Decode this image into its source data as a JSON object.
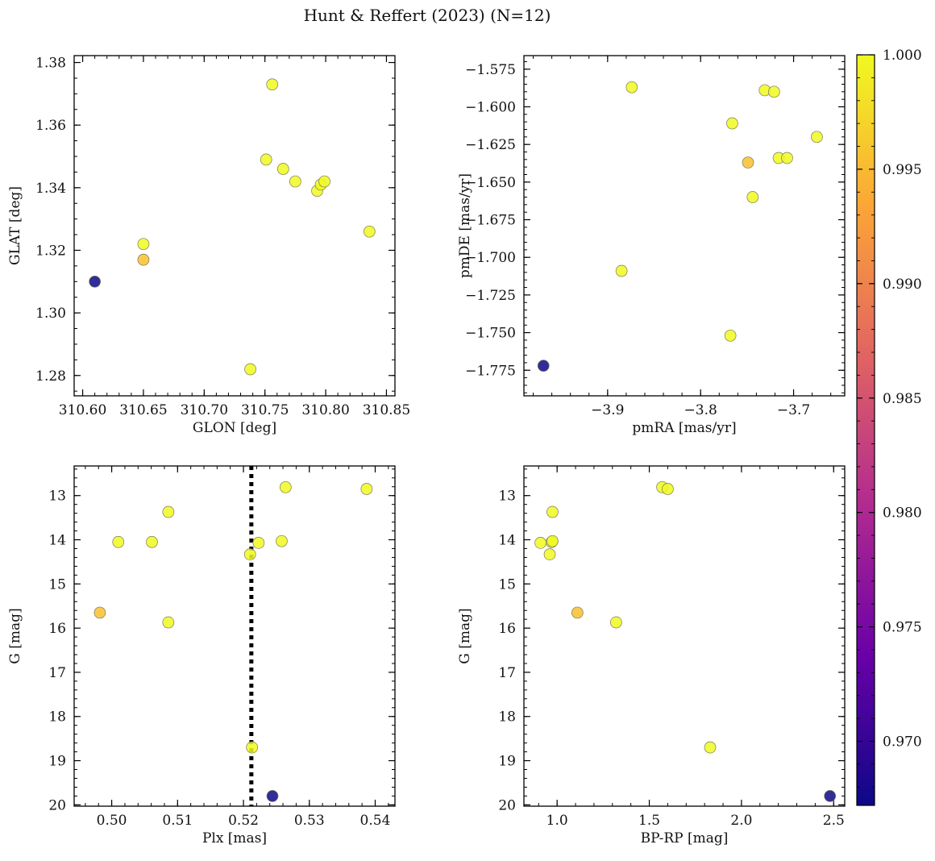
{
  "figure": {
    "title": "Hunt & Reffert (2023) (N=12)"
  },
  "colorbar": {
    "min": 0.9672,
    "max": 1.0,
    "ticks": [
      "1.000",
      "0.995",
      "0.990",
      "0.985",
      "0.980",
      "0.975",
      "0.970"
    ],
    "tick_values": [
      1.0,
      0.995,
      0.99,
      0.985,
      0.98,
      0.975,
      0.97
    ],
    "colormap": "plasma",
    "colors": [
      "#0d0887",
      "#6a00a8",
      "#b12a90",
      "#e16462",
      "#fca636",
      "#f0f921"
    ]
  },
  "chart_data": [
    {
      "type": "scatter",
      "id": "lonlat",
      "xlabel": "GLON [deg]",
      "ylabel": "GLAT [deg]",
      "xlim": [
        310.593,
        310.857
      ],
      "ylim": [
        1.2735,
        1.3822
      ],
      "y_inverted": false,
      "xticks": [
        {
          "v": 310.6,
          "label": "310.60"
        },
        {
          "v": 310.65,
          "label": "310.65"
        },
        {
          "v": 310.7,
          "label": "310.70"
        },
        {
          "v": 310.75,
          "label": "310.75"
        },
        {
          "v": 310.8,
          "label": "310.80"
        },
        {
          "v": 310.85,
          "label": "310.85"
        }
      ],
      "yticks": [
        {
          "v": 1.28,
          "label": "1.28"
        },
        {
          "v": 1.3,
          "label": "1.30"
        },
        {
          "v": 1.32,
          "label": "1.32"
        },
        {
          "v": 1.34,
          "label": "1.34"
        },
        {
          "v": 1.36,
          "label": "1.36"
        },
        {
          "v": 1.38,
          "label": "1.38"
        }
      ],
      "x_minor_step": 0.01,
      "y_minor_step": 0.005,
      "points": [
        {
          "x": 310.61,
          "y": 1.31,
          "c": 0.9672
        },
        {
          "x": 310.65,
          "y": 1.317,
          "c": 0.9955
        },
        {
          "x": 310.65,
          "y": 1.322,
          "c": 1.0
        },
        {
          "x": 310.738,
          "y": 1.282,
          "c": 1.0
        },
        {
          "x": 310.751,
          "y": 1.349,
          "c": 1.0
        },
        {
          "x": 310.756,
          "y": 1.373,
          "c": 1.0
        },
        {
          "x": 310.765,
          "y": 1.346,
          "c": 1.0
        },
        {
          "x": 310.775,
          "y": 1.342,
          "c": 1.0
        },
        {
          "x": 310.793,
          "y": 1.339,
          "c": 1.0
        },
        {
          "x": 310.796,
          "y": 1.341,
          "c": 1.0
        },
        {
          "x": 310.799,
          "y": 1.342,
          "c": 1.0
        },
        {
          "x": 310.836,
          "y": 1.326,
          "c": 1.0
        }
      ]
    },
    {
      "type": "scatter",
      "id": "pm",
      "xlabel": "pmRA [mas/yr]",
      "ylabel": "pmDE [mas/yr]",
      "xlim": [
        -3.99,
        -3.645
      ],
      "ylim": [
        -1.792,
        -1.566
      ],
      "y_inverted": false,
      "xticks": [
        {
          "v": -3.9,
          "label": "−3.9"
        },
        {
          "v": -3.8,
          "label": "−3.8"
        },
        {
          "v": -3.7,
          "label": "−3.7"
        }
      ],
      "yticks": [
        {
          "v": -1.575,
          "label": "−1.575"
        },
        {
          "v": -1.6,
          "label": "−1.600"
        },
        {
          "v": -1.625,
          "label": "−1.625"
        },
        {
          "v": -1.65,
          "label": "−1.650"
        },
        {
          "v": -1.675,
          "label": "−1.675"
        },
        {
          "v": -1.7,
          "label": "−1.700"
        },
        {
          "v": -1.725,
          "label": "−1.725"
        },
        {
          "v": -1.75,
          "label": "−1.750"
        },
        {
          "v": -1.775,
          "label": "−1.775"
        }
      ],
      "x_minor_step": 0.02,
      "y_minor_step": 0.005,
      "points": [
        {
          "x": -3.969,
          "y": -1.772,
          "c": 0.9672
        },
        {
          "x": -3.885,
          "y": -1.709,
          "c": 1.0
        },
        {
          "x": -3.874,
          "y": -1.587,
          "c": 1.0
        },
        {
          "x": -3.768,
          "y": -1.752,
          "c": 1.0
        },
        {
          "x": -3.766,
          "y": -1.611,
          "c": 1.0
        },
        {
          "x": -3.749,
          "y": -1.637,
          "c": 0.9955
        },
        {
          "x": -3.744,
          "y": -1.66,
          "c": 1.0
        },
        {
          "x": -3.731,
          "y": -1.589,
          "c": 1.0
        },
        {
          "x": -3.721,
          "y": -1.59,
          "c": 1.0
        },
        {
          "x": -3.716,
          "y": -1.634,
          "c": 1.0
        },
        {
          "x": -3.707,
          "y": -1.634,
          "c": 1.0
        },
        {
          "x": -3.675,
          "y": -1.62,
          "c": 1.0
        }
      ]
    },
    {
      "type": "scatter",
      "id": "plx",
      "xlabel": "Plx [mas]",
      "ylabel": "G [mag]",
      "xlim": [
        0.4943,
        0.543
      ],
      "ylim": [
        12.33,
        20.03
      ],
      "y_inverted": true,
      "vline": 0.5212,
      "xticks": [
        {
          "v": 0.5,
          "label": "0.50"
        },
        {
          "v": 0.51,
          "label": "0.51"
        },
        {
          "v": 0.52,
          "label": "0.52"
        },
        {
          "v": 0.53,
          "label": "0.53"
        },
        {
          "v": 0.54,
          "label": "0.54"
        }
      ],
      "yticks": [
        {
          "v": 13,
          "label": "13"
        },
        {
          "v": 14,
          "label": "14"
        },
        {
          "v": 15,
          "label": "15"
        },
        {
          "v": 16,
          "label": "16"
        },
        {
          "v": 17,
          "label": "17"
        },
        {
          "v": 18,
          "label": "18"
        },
        {
          "v": 19,
          "label": "19"
        },
        {
          "v": 20,
          "label": "20"
        }
      ],
      "x_minor_step": 0.002,
      "y_minor_step": 0.2,
      "points": [
        {
          "x": 0.4982,
          "y": 15.65,
          "c": 0.9955
        },
        {
          "x": 0.501,
          "y": 14.05,
          "c": 1.0
        },
        {
          "x": 0.5061,
          "y": 14.05,
          "c": 1.0
        },
        {
          "x": 0.5086,
          "y": 13.37,
          "c": 1.0
        },
        {
          "x": 0.5086,
          "y": 15.87,
          "c": 1.0
        },
        {
          "x": 0.521,
          "y": 14.33,
          "c": 1.0
        },
        {
          "x": 0.5213,
          "y": 18.7,
          "c": 1.0
        },
        {
          "x": 0.5223,
          "y": 14.07,
          "c": 1.0
        },
        {
          "x": 0.5244,
          "y": 19.8,
          "c": 0.9672
        },
        {
          "x": 0.5258,
          "y": 14.03,
          "c": 1.0
        },
        {
          "x": 0.5264,
          "y": 12.81,
          "c": 1.0
        },
        {
          "x": 0.5387,
          "y": 12.85,
          "c": 1.0
        }
      ]
    },
    {
      "type": "scatter",
      "id": "cmd",
      "xlabel": "BP-RP [mag]",
      "ylabel": "G [mag]",
      "xlim": [
        0.82,
        2.56
      ],
      "ylim": [
        12.33,
        20.03
      ],
      "y_inverted": true,
      "xticks": [
        {
          "v": 1.0,
          "label": "1.0"
        },
        {
          "v": 1.5,
          "label": "1.5"
        },
        {
          "v": 2.0,
          "label": "2.0"
        },
        {
          "v": 2.5,
          "label": "2.5"
        }
      ],
      "yticks": [
        {
          "v": 13,
          "label": "13"
        },
        {
          "v": 14,
          "label": "14"
        },
        {
          "v": 15,
          "label": "15"
        },
        {
          "v": 16,
          "label": "16"
        },
        {
          "v": 17,
          "label": "17"
        },
        {
          "v": 18,
          "label": "18"
        },
        {
          "v": 19,
          "label": "19"
        },
        {
          "v": 20,
          "label": "20"
        }
      ],
      "x_minor_step": 0.1,
      "y_minor_step": 0.2,
      "points": [
        {
          "x": 0.91,
          "y": 14.07,
          "c": 1.0
        },
        {
          "x": 0.96,
          "y": 14.33,
          "c": 1.0
        },
        {
          "x": 0.97,
          "y": 14.05,
          "c": 1.0
        },
        {
          "x": 0.975,
          "y": 14.03,
          "c": 1.0
        },
        {
          "x": 0.975,
          "y": 13.37,
          "c": 1.0
        },
        {
          "x": 1.11,
          "y": 15.65,
          "c": 0.9955
        },
        {
          "x": 1.32,
          "y": 15.87,
          "c": 1.0
        },
        {
          "x": 1.57,
          "y": 12.81,
          "c": 1.0
        },
        {
          "x": 1.6,
          "y": 12.85,
          "c": 1.0
        },
        {
          "x": 1.83,
          "y": 18.7,
          "c": 1.0
        },
        {
          "x": 2.48,
          "y": 19.8,
          "c": 0.9672
        }
      ]
    }
  ]
}
